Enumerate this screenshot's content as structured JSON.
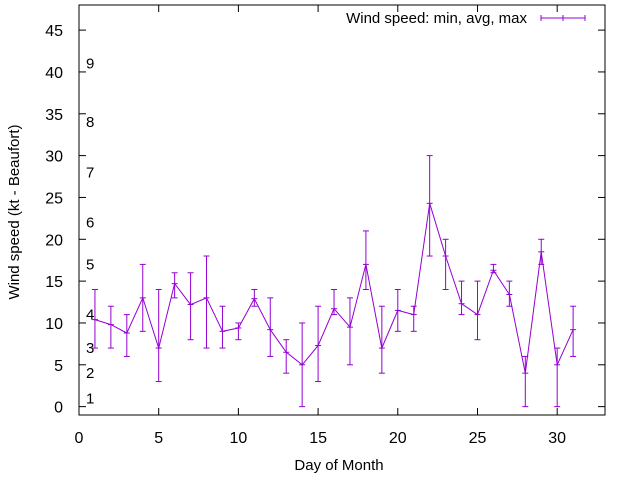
{
  "chart_data": {
    "type": "line",
    "title": "",
    "xlabel": "Day of Month",
    "ylabel": "Wind speed (kt - Beaufort)",
    "xlim": [
      0,
      33
    ],
    "ylim": [
      -1,
      48
    ],
    "x_ticks": [
      0,
      5,
      10,
      15,
      20,
      25,
      30
    ],
    "y_ticks": [
      0,
      5,
      10,
      15,
      20,
      25,
      30,
      35,
      40,
      45
    ],
    "grid": false,
    "legend_position": "top-right",
    "beaufort_scale": [
      {
        "label": "1",
        "value": 1
      },
      {
        "label": "2",
        "value": 4
      },
      {
        "label": "3",
        "value": 7
      },
      {
        "label": "4",
        "value": 11
      },
      {
        "label": "5",
        "value": 17
      },
      {
        "label": "6",
        "value": 22
      },
      {
        "label": "7",
        "value": 28
      },
      {
        "label": "8",
        "value": 34
      },
      {
        "label": "9",
        "value": 41
      }
    ],
    "series": [
      {
        "name": "Wind speed: min, avg, max",
        "color": "#9400d3",
        "style": "yerrorlines",
        "x": [
          1,
          2,
          3,
          4,
          5,
          6,
          7,
          8,
          9,
          10,
          11,
          12,
          13,
          14,
          15,
          16,
          17,
          18,
          19,
          20,
          21,
          22,
          23,
          24,
          25,
          26,
          27,
          28,
          29,
          30,
          31
        ],
        "avg": [
          10.4,
          9.8,
          8.8,
          13.0,
          7.0,
          14.7,
          12.2,
          13.0,
          9.0,
          9.4,
          12.9,
          9.2,
          6.5,
          5.0,
          7.3,
          11.7,
          9.5,
          17.0,
          7.0,
          11.5,
          11.0,
          24.3,
          18.0,
          12.3,
          11.0,
          16.3,
          13.4,
          4.0,
          18.5,
          5.0,
          9.2
        ],
        "min": [
          7,
          7,
          6,
          9,
          3,
          13,
          8,
          7,
          7,
          8,
          12,
          6,
          4,
          0,
          3,
          11,
          5,
          14,
          4,
          9,
          9,
          18,
          14,
          11,
          8,
          16,
          12,
          0,
          17,
          0,
          6
        ],
        "max": [
          14,
          12,
          11,
          17,
          14,
          16,
          16,
          18,
          12,
          10,
          14,
          13,
          8,
          10,
          12,
          14,
          13,
          21,
          12,
          14,
          12,
          30,
          20,
          15,
          15,
          17,
          15,
          6,
          20,
          7,
          12
        ]
      }
    ]
  }
}
